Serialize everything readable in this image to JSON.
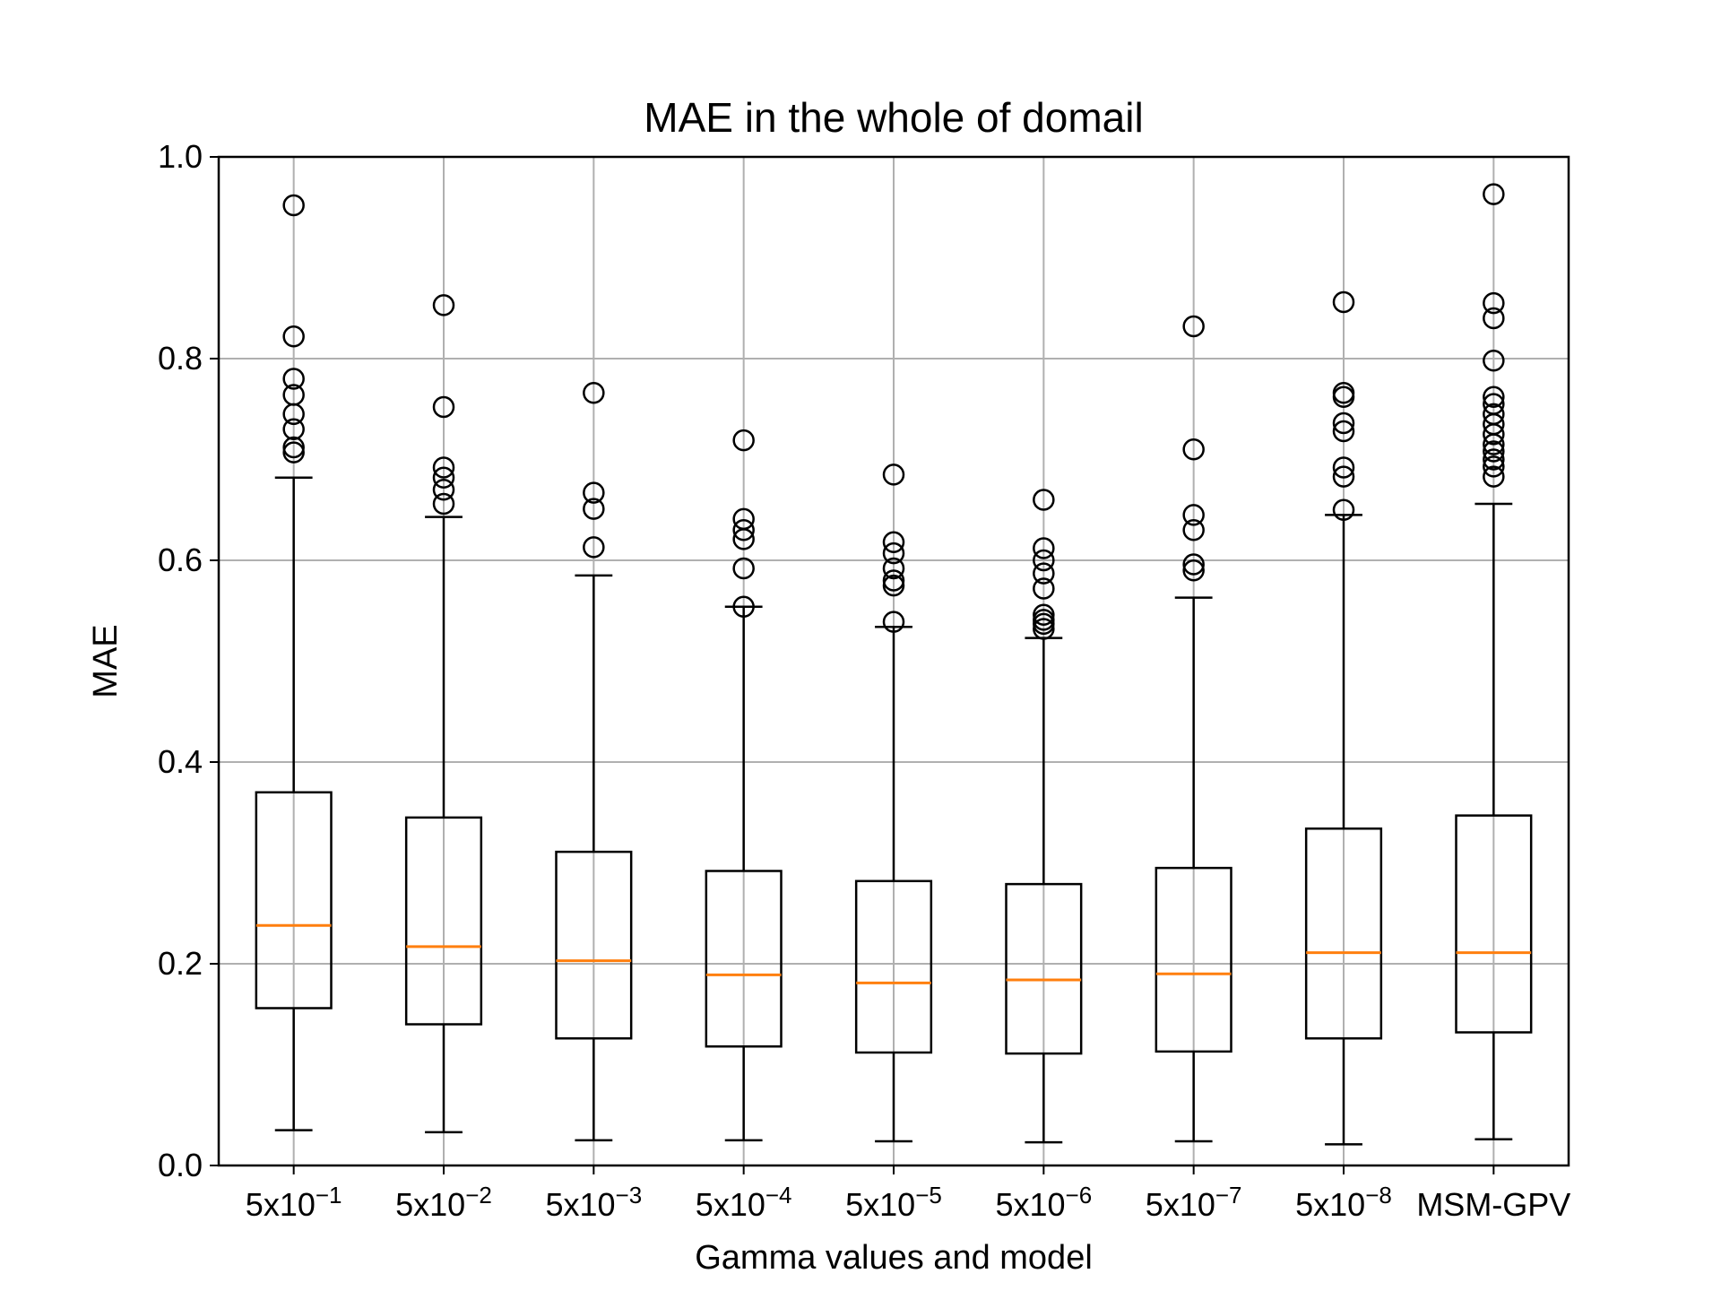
{
  "chart_data": {
    "type": "box",
    "title": "MAE in the whole of domail",
    "xlabel": "Gamma values and model",
    "ylabel": "MAE",
    "ylim": [
      0.0,
      1.0
    ],
    "yticks": [
      "0.0",
      "0.2",
      "0.4",
      "0.6",
      "0.8",
      "1.0"
    ],
    "grid": true,
    "colors": {
      "box": "#000000",
      "median": "#ff7f0e",
      "grid": "#b0b0b0"
    },
    "categories": [
      {
        "base": "5x10",
        "exp": "−1"
      },
      {
        "base": "5x10",
        "exp": "−2"
      },
      {
        "base": "5x10",
        "exp": "−3"
      },
      {
        "base": "5x10",
        "exp": "−4"
      },
      {
        "base": "5x10",
        "exp": "−5"
      },
      {
        "base": "5x10",
        "exp": "−6"
      },
      {
        "base": "5x10",
        "exp": "−7"
      },
      {
        "base": "5x10",
        "exp": "−8"
      },
      {
        "base": "MSM-GPV",
        "exp": ""
      }
    ],
    "boxes": [
      {
        "whislo": 0.035,
        "q1": 0.156,
        "med": 0.238,
        "q3": 0.37,
        "whishi": 0.682,
        "fliers": [
          0.952,
          0.822,
          0.78,
          0.764,
          0.745,
          0.73,
          0.712,
          0.707
        ]
      },
      {
        "whislo": 0.033,
        "q1": 0.14,
        "med": 0.217,
        "q3": 0.345,
        "whishi": 0.643,
        "fliers": [
          0.853,
          0.752,
          0.692,
          0.682,
          0.67,
          0.656
        ]
      },
      {
        "whislo": 0.025,
        "q1": 0.126,
        "med": 0.203,
        "q3": 0.311,
        "whishi": 0.585,
        "fliers": [
          0.766,
          0.667,
          0.651,
          0.613
        ]
      },
      {
        "whislo": 0.025,
        "q1": 0.118,
        "med": 0.189,
        "q3": 0.292,
        "whishi": 0.554,
        "fliers": [
          0.719,
          0.641,
          0.63,
          0.621,
          0.592,
          0.554
        ]
      },
      {
        "whislo": 0.024,
        "q1": 0.112,
        "med": 0.181,
        "q3": 0.282,
        "whishi": 0.534,
        "fliers": [
          0.685,
          0.618,
          0.607,
          0.592,
          0.58,
          0.575,
          0.539
        ]
      },
      {
        "whislo": 0.023,
        "q1": 0.111,
        "med": 0.184,
        "q3": 0.279,
        "whishi": 0.523,
        "fliers": [
          0.66,
          0.612,
          0.6,
          0.587,
          0.572,
          0.546,
          0.541,
          0.537,
          0.532
        ]
      },
      {
        "whislo": 0.024,
        "q1": 0.113,
        "med": 0.19,
        "q3": 0.295,
        "whishi": 0.563,
        "fliers": [
          0.832,
          0.71,
          0.645,
          0.63,
          0.596,
          0.59
        ]
      },
      {
        "whislo": 0.021,
        "q1": 0.126,
        "med": 0.211,
        "q3": 0.334,
        "whishi": 0.645,
        "fliers": [
          0.856,
          0.766,
          0.762,
          0.736,
          0.728,
          0.692,
          0.683,
          0.65
        ]
      },
      {
        "whislo": 0.026,
        "q1": 0.132,
        "med": 0.211,
        "q3": 0.347,
        "whishi": 0.656,
        "fliers": [
          0.963,
          0.855,
          0.84,
          0.798,
          0.762,
          0.755,
          0.745,
          0.735,
          0.725,
          0.715,
          0.708,
          0.7,
          0.693,
          0.683
        ]
      }
    ]
  }
}
